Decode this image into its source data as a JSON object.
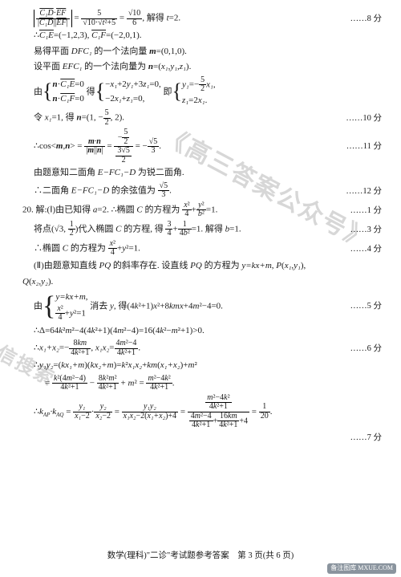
{
  "watermark1": "《高三答案公众号》",
  "watermark2": "微信搜索",
  "lines": {
    "l1a": "|C₁D·EF| / (|C₁D||EF|) = 5 / (√10·√(t²+5)) = √10/6, 解得 t=2.",
    "s1": "……8 分",
    "l2": "∴C₁E=(−1,2,3), C₁F=(−2,0,1).",
    "l3": "易得平面 DFC₁ 的一个法向量 m=(0,1,0).",
    "l4": "设平面 EFC₁ 的一个法向量为 n=(x₁,y₁,z₁).",
    "l5a": "由",
    "l5b": "n·C₁E=0",
    "l5c": "n·C₁F=0",
    "l5d": "得",
    "l5e": "−x₁+2y₁+3z₁=0,",
    "l5f": "−2x₁+z₁=0,",
    "l5g": "即",
    "l5h": "y₁=−(5/2)x₁,",
    "l5i": "z₁=2x₁.",
    "l6": "令 x₁=1, 得 n=(1, −5/2, 2).",
    "s6": "……10 分",
    "l7": "∴cos<m,n> = (m·n)/(|m||n|) = (−5/2)/(3√5/2) = −√5/3.",
    "s7": "……11 分",
    "l8": "由题意知二面角 E−FC₁−D 为锐二面角.",
    "l9": "∴二面角 E−FC₁−D 的余弦值为 √5/3.",
    "s9": "……12 分",
    "l10": "20. 解:(Ⅰ)由已知得 a=2. ∴椭圆 C 的方程为 x²/4 + y²/b² =1.",
    "s10": "……1 分",
    "l11": "将点(√3, 1/2)代入椭圆 C 的方程, 得 3/4 + 1/(4b²) =1. 解得 b=1.",
    "s11": "……3 分",
    "l12": "∴椭圆 C 的方程为 x²/4 + y² =1.",
    "s12": "……4 分",
    "l13": "(Ⅱ)由题意知直线 PQ 的斜率存在. 设直线 PQ 的方程为 y=kx+m, P(x₁,y₁),",
    "l13b": "Q(x₂,y₂).",
    "l14a": "由",
    "l14b": "y=kx+m,",
    "l14c": "x²/4 + y² =1",
    "l14d": "消去 y, 得(4k²+1)x²+8kmx+4m²−4=0.",
    "s14": "……5 分",
    "l15": "∴Δ=64k²m²−4(4k²+1)(4m²−4)=16(4k²−m²+1)>0.",
    "l16": "∴x₁+x₂=−8km/(4k²+1), x₁x₂=(4m²−4)/(4k²+1).",
    "s16": "……6 分",
    "l17": "∴y₁y₂=(kx₁+m)(kx₂+m)=k²x₁x₂+km(x₁+x₂)+m²",
    "l18": "= k²(4m²−4)/(4k²+1) − 8k²m²/(4k²+1) + m² = (m²−4k²)/(4k²+1).",
    "l19a": "∴k_AP·k_AQ = y₁/(x₁−2) · y₂/(x₂−2) = y₁y₂/(x₁x₂−2(x₁+x₂)+4)",
    "l19b": "= [(m²−4k²)/(4k²+1)] / [(4m²−4)/(4k²+1) + 16km/(4k²+1) +4] = 1/20.",
    "s19": "……7 分"
  },
  "footer": "数学(理科)\"二诊\"考试题参考答案　第 3 页(共 6 页)",
  "stamp": "备注图库\nMXUE.COM"
}
